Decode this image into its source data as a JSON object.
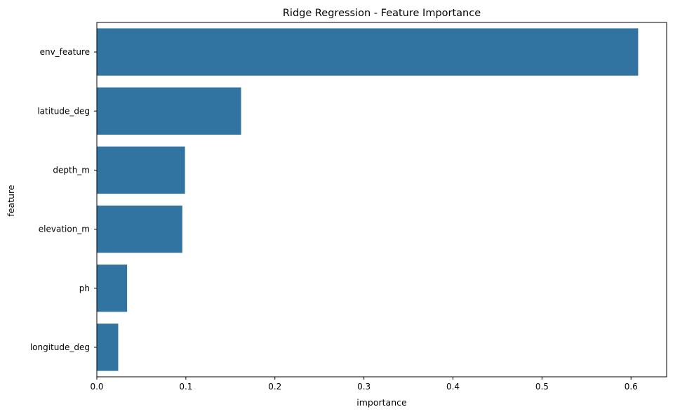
{
  "chart_data": {
    "type": "bar",
    "orientation": "horizontal",
    "title": "Ridge Regression - Feature Importance",
    "xlabel": "importance",
    "ylabel": "feature",
    "categories": [
      "env_feature",
      "latitude_deg",
      "depth_m",
      "elevation_m",
      "ph",
      "longitude_deg"
    ],
    "values": [
      0.608,
      0.162,
      0.099,
      0.096,
      0.034,
      0.024
    ],
    "xlim": [
      0,
      0.64
    ],
    "xticks": [
      0.0,
      0.1,
      0.2,
      0.3,
      0.4,
      0.5,
      0.6
    ],
    "xtick_labels": [
      "0.0",
      "0.1",
      "0.2",
      "0.3",
      "0.4",
      "0.5",
      "0.6"
    ],
    "grid": false,
    "legend": "none",
    "colors": {
      "bar": "#3274a1"
    }
  }
}
